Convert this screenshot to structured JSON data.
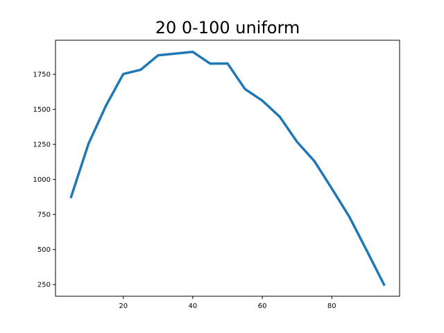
{
  "chart_data": {
    "type": "line",
    "title": "20 0-100 uniform",
    "xlabel": "",
    "ylabel": "",
    "x": [
      5,
      10,
      15,
      20,
      25,
      30,
      35,
      40,
      45,
      50,
      55,
      60,
      65,
      70,
      75,
      80,
      85,
      90,
      95
    ],
    "series": [
      {
        "values": [
          875,
          1255,
          1525,
          1752,
          1782,
          1885,
          1898,
          1910,
          1826,
          1827,
          1645,
          1562,
          1447,
          1268,
          1130,
          935,
          735,
          495,
          250
        ],
        "color": "#1f77b4"
      }
    ],
    "xlim": [
      0.5,
      99.5
    ],
    "ylim": [
      167,
      1993
    ],
    "xticks": [
      20,
      40,
      60,
      80
    ],
    "yticks": [
      250,
      500,
      750,
      1000,
      1250,
      1500,
      1750
    ],
    "grid": false,
    "legend": "none"
  }
}
